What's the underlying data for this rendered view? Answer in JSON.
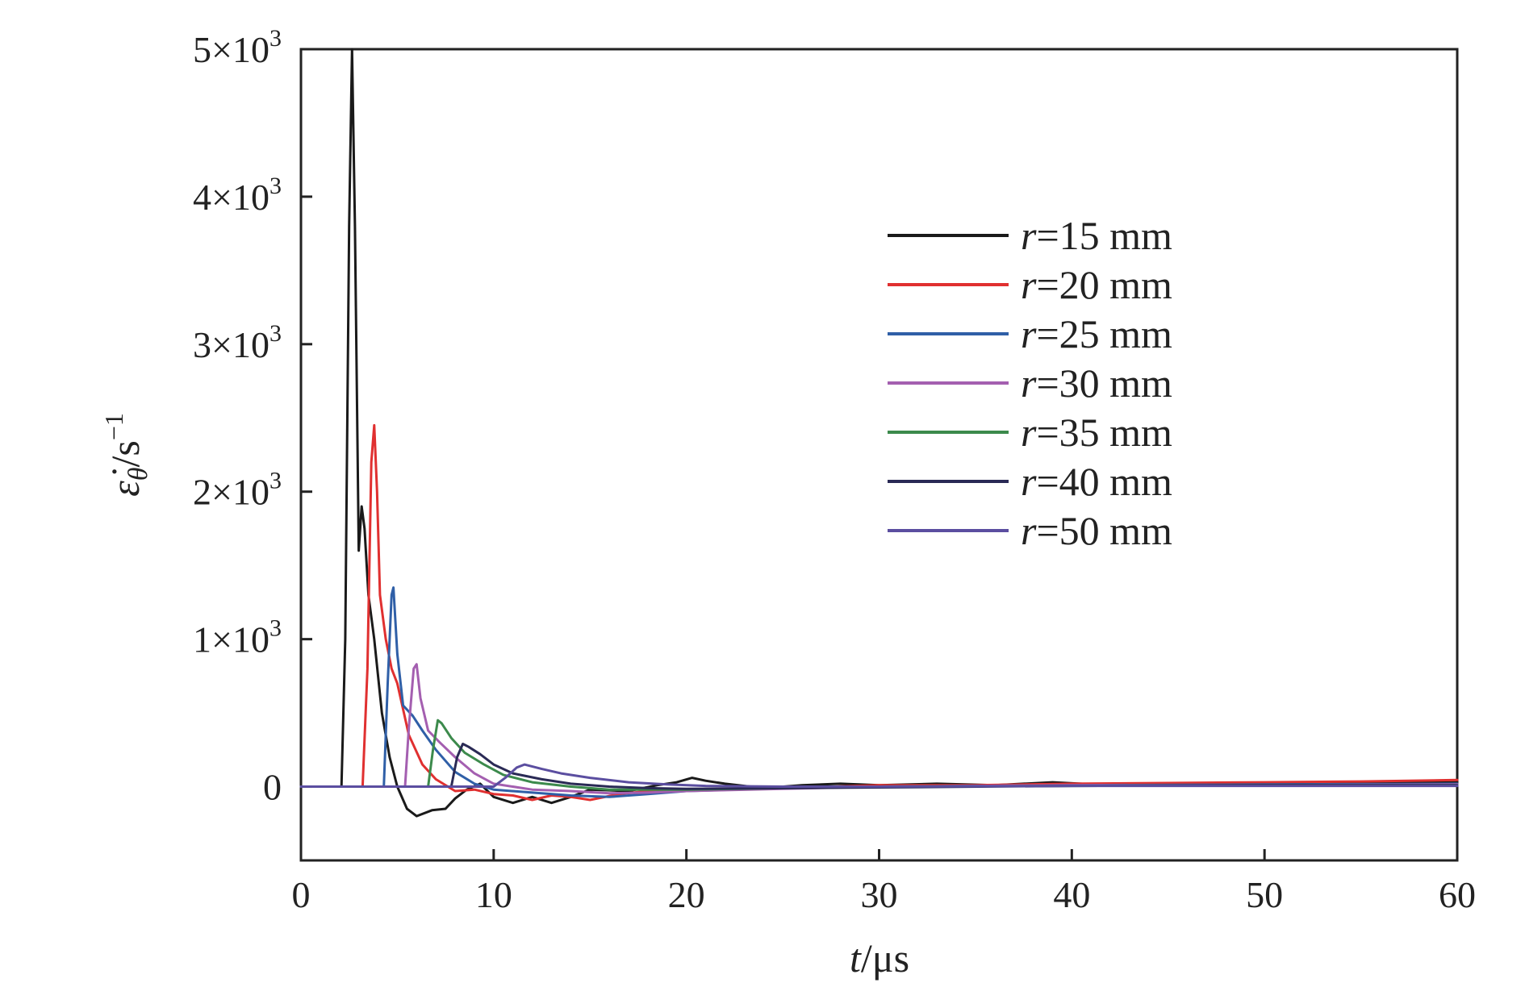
{
  "chart_data": {
    "type": "line",
    "xlabel_var": "t",
    "xlabel_unit": "/μs",
    "ylabel_var": "ε̇",
    "ylabel_sub": "θ",
    "ylabel_unit": "/s",
    "ylabel_exp": "−1",
    "xlim": [
      0,
      60
    ],
    "ylim": [
      -500,
      5000
    ],
    "x_ticks": [
      0,
      10,
      20,
      30,
      40,
      50,
      60
    ],
    "x_tick_labels": [
      "0",
      "10",
      "20",
      "30",
      "40",
      "50",
      "60"
    ],
    "y_ticks": [
      0,
      1000,
      2000,
      3000,
      4000,
      5000
    ],
    "y_tick_labels": [
      {
        "value": 0,
        "base": "0",
        "exp": ""
      },
      {
        "value": 1000,
        "base": "1×10",
        "exp": "3"
      },
      {
        "value": 2000,
        "base": "2×10",
        "exp": "3"
      },
      {
        "value": 3000,
        "base": "3×10",
        "exp": "3"
      },
      {
        "value": 4000,
        "base": "4×10",
        "exp": "3"
      },
      {
        "value": 5000,
        "base": "5×10",
        "exp": "3"
      }
    ],
    "grid": false,
    "legend_position": "top-right",
    "series": [
      {
        "name_var": "r",
        "name_rest": "=15 mm",
        "color": "#1a1a1a",
        "points": [
          [
            0,
            0
          ],
          [
            2.1,
            0
          ],
          [
            2.3,
            1000
          ],
          [
            2.5,
            3800
          ],
          [
            2.65,
            5000
          ],
          [
            2.8,
            3800
          ],
          [
            3.0,
            1600
          ],
          [
            3.15,
            1900
          ],
          [
            3.3,
            1750
          ],
          [
            3.5,
            1300
          ],
          [
            3.8,
            1000
          ],
          [
            4.2,
            500
          ],
          [
            4.6,
            200
          ],
          [
            5.0,
            0
          ],
          [
            5.5,
            -150
          ],
          [
            6.0,
            -200
          ],
          [
            6.8,
            -160
          ],
          [
            7.5,
            -150
          ],
          [
            8.0,
            -80
          ],
          [
            8.6,
            -20
          ],
          [
            9.3,
            20
          ],
          [
            10.0,
            -70
          ],
          [
            11.0,
            -110
          ],
          [
            12.0,
            -70
          ],
          [
            13.0,
            -110
          ],
          [
            14.0,
            -70
          ],
          [
            15.0,
            -20
          ],
          [
            17.0,
            -30
          ],
          [
            18.5,
            10
          ],
          [
            19.5,
            30
          ],
          [
            20.3,
            60
          ],
          [
            21.0,
            40
          ],
          [
            22.0,
            20
          ],
          [
            24.0,
            -10
          ],
          [
            26.0,
            10
          ],
          [
            28.0,
            20
          ],
          [
            30.0,
            10
          ],
          [
            33.0,
            20
          ],
          [
            36.0,
            10
          ],
          [
            39.0,
            30
          ],
          [
            42.0,
            10
          ],
          [
            46.0,
            15
          ],
          [
            50.0,
            20
          ],
          [
            55.0,
            25
          ],
          [
            60.0,
            30
          ]
        ]
      },
      {
        "name_var": "r",
        "name_rest": "=20 mm",
        "color": "#e03030",
        "points": [
          [
            0,
            0
          ],
          [
            3.2,
            0
          ],
          [
            3.45,
            800
          ],
          [
            3.65,
            2200
          ],
          [
            3.8,
            2450
          ],
          [
            3.95,
            2000
          ],
          [
            4.1,
            1300
          ],
          [
            4.4,
            1000
          ],
          [
            4.7,
            800
          ],
          [
            5.0,
            700
          ],
          [
            5.6,
            350
          ],
          [
            6.3,
            150
          ],
          [
            7.0,
            50
          ],
          [
            8.0,
            -30
          ],
          [
            9.0,
            -20
          ],
          [
            10.0,
            -50
          ],
          [
            11.0,
            -60
          ],
          [
            12.0,
            -90
          ],
          [
            13.0,
            -60
          ],
          [
            14.0,
            -70
          ],
          [
            15.0,
            -90
          ],
          [
            16.5,
            -50
          ],
          [
            18.0,
            -30
          ],
          [
            20.0,
            -20
          ],
          [
            25.0,
            -10
          ],
          [
            30.0,
            10
          ],
          [
            35.0,
            10
          ],
          [
            40.0,
            20
          ],
          [
            45.0,
            25
          ],
          [
            50.0,
            30
          ],
          [
            55.0,
            35
          ],
          [
            60.0,
            45
          ]
        ]
      },
      {
        "name_var": "r",
        "name_rest": "=25 mm",
        "color": "#2f5fa7",
        "points": [
          [
            0,
            0
          ],
          [
            4.3,
            0
          ],
          [
            4.5,
            700
          ],
          [
            4.7,
            1300
          ],
          [
            4.8,
            1350
          ],
          [
            5.0,
            900
          ],
          [
            5.3,
            550
          ],
          [
            5.8,
            480
          ],
          [
            6.3,
            380
          ],
          [
            7.0,
            250
          ],
          [
            8.0,
            100
          ],
          [
            9.0,
            20
          ],
          [
            10.0,
            -20
          ],
          [
            12.0,
            -40
          ],
          [
            14.0,
            -60
          ],
          [
            16.0,
            -70
          ],
          [
            18.0,
            -50
          ],
          [
            20.0,
            -30
          ],
          [
            25.0,
            -10
          ],
          [
            30.0,
            0
          ],
          [
            40.0,
            10
          ],
          [
            50.0,
            15
          ],
          [
            60.0,
            20
          ]
        ]
      },
      {
        "name_var": "r",
        "name_rest": "=30 mm",
        "color": "#a45fb0",
        "points": [
          [
            0,
            0
          ],
          [
            5.4,
            0
          ],
          [
            5.6,
            400
          ],
          [
            5.85,
            800
          ],
          [
            6.0,
            830
          ],
          [
            6.2,
            600
          ],
          [
            6.6,
            380
          ],
          [
            7.2,
            300
          ],
          [
            8.0,
            200
          ],
          [
            9.0,
            90
          ],
          [
            10.0,
            20
          ],
          [
            12.0,
            -20
          ],
          [
            14.0,
            -30
          ],
          [
            16.0,
            -45
          ],
          [
            18.0,
            -40
          ],
          [
            20.0,
            -30
          ],
          [
            25.0,
            -15
          ],
          [
            30.0,
            0
          ],
          [
            40.0,
            10
          ],
          [
            50.0,
            10
          ],
          [
            60.0,
            15
          ]
        ]
      },
      {
        "name_var": "r",
        "name_rest": "=35 mm",
        "color": "#3c8a4c",
        "points": [
          [
            0,
            0
          ],
          [
            6.6,
            0
          ],
          [
            6.85,
            250
          ],
          [
            7.1,
            450
          ],
          [
            7.3,
            430
          ],
          [
            7.8,
            330
          ],
          [
            8.5,
            230
          ],
          [
            9.5,
            150
          ],
          [
            10.5,
            80
          ],
          [
            12.0,
            30
          ],
          [
            14.0,
            0
          ],
          [
            16.0,
            -20
          ],
          [
            18.0,
            -20
          ],
          [
            20.0,
            -20
          ],
          [
            25.0,
            -10
          ],
          [
            30.0,
            0
          ],
          [
            40.0,
            5
          ],
          [
            50.0,
            10
          ],
          [
            60.0,
            10
          ]
        ]
      },
      {
        "name_var": "r",
        "name_rest": "=40 mm",
        "color": "#2a2a55",
        "points": [
          [
            0,
            0
          ],
          [
            7.8,
            0
          ],
          [
            8.1,
            200
          ],
          [
            8.4,
            290
          ],
          [
            8.7,
            270
          ],
          [
            9.3,
            220
          ],
          [
            10.0,
            150
          ],
          [
            11.0,
            90
          ],
          [
            12.5,
            50
          ],
          [
            14.0,
            20
          ],
          [
            16.0,
            0
          ],
          [
            18.0,
            -10
          ],
          [
            20.0,
            -15
          ],
          [
            25.0,
            -10
          ],
          [
            30.0,
            -5
          ],
          [
            40.0,
            5
          ],
          [
            50.0,
            10
          ],
          [
            60.0,
            10
          ]
        ]
      },
      {
        "name_var": "r",
        "name_rest": "=50 mm",
        "color": "#5b4ea0",
        "points": [
          [
            0,
            0
          ],
          [
            10.0,
            0
          ],
          [
            10.6,
            60
          ],
          [
            11.2,
            130
          ],
          [
            11.6,
            150
          ],
          [
            12.5,
            120
          ],
          [
            13.5,
            90
          ],
          [
            15.0,
            60
          ],
          [
            17.0,
            30
          ],
          [
            19.0,
            15
          ],
          [
            21.0,
            5
          ],
          [
            25.0,
            0
          ],
          [
            30.0,
            0
          ],
          [
            40.0,
            5
          ],
          [
            50.0,
            5
          ],
          [
            60.0,
            5
          ]
        ]
      }
    ]
  }
}
